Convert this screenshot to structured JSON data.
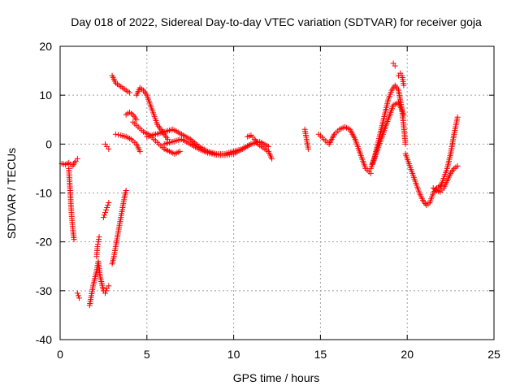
{
  "chart_data": {
    "type": "scatter",
    "title": "Day 018 of 2022, Sidereal Day-to-day VTEC variation (SDTVAR) for receiver goja",
    "xlabel": "GPS time / hours",
    "ylabel": "SDTVAR / TECUs",
    "xlim": [
      0,
      25
    ],
    "ylim": [
      -40,
      20
    ],
    "xticks": [
      0,
      5,
      10,
      15,
      20,
      25
    ],
    "yticks": [
      -40,
      -30,
      -20,
      -10,
      0,
      10,
      20
    ],
    "xtick_labels": [
      "0",
      "5",
      "10",
      "15",
      "20",
      "25"
    ],
    "ytick_labels": [
      "-40",
      "-30",
      "-20",
      "-10",
      "0",
      "10",
      "20"
    ],
    "grid": true,
    "marker": "plus",
    "color": "#ff0000",
    "series": [
      {
        "name": "seg-a",
        "x": [
          0.1,
          0.3,
          0.5,
          0.7,
          0.9,
          1.0
        ],
        "y": [
          -4,
          -4.2,
          -3.8,
          -4.5,
          -3.5,
          -3.0
        ]
      },
      {
        "name": "seg-b",
        "x": [
          0.5,
          0.55,
          0.6,
          0.65,
          0.7,
          0.75,
          0.8
        ],
        "y": [
          -5,
          -8,
          -11,
          -14,
          -16,
          -18,
          -19.5
        ]
      },
      {
        "name": "seg-c",
        "x": [
          1.0,
          1.05,
          1.1
        ],
        "y": [
          -30.5,
          -31,
          -31.5
        ]
      },
      {
        "name": "seg-d",
        "x": [
          1.7,
          1.8,
          1.9,
          2.0,
          2.1,
          2.2,
          2.3,
          2.4,
          2.5,
          2.6,
          2.7,
          2.8
        ],
        "y": [
          -33,
          -31,
          -29,
          -27.5,
          -26,
          -24,
          -27,
          -28.5,
          -30,
          -30.5,
          -29.5,
          -29
        ]
      },
      {
        "name": "seg-e",
        "x": [
          2.1,
          2.15,
          2.2,
          2.25
        ],
        "y": [
          -23,
          -21,
          -20,
          -19
        ]
      },
      {
        "name": "seg-f",
        "x": [
          2.5,
          2.6,
          2.7,
          2.8
        ],
        "y": [
          -15,
          -14,
          -13,
          -12
        ]
      },
      {
        "name": "seg-g",
        "x": [
          3.0,
          3.1,
          3.2,
          3.3,
          3.4,
          3.5,
          3.6,
          3.7,
          3.8
        ],
        "y": [
          -24.5,
          -23,
          -21,
          -19,
          -17,
          -15,
          -13,
          -11,
          -9.5
        ]
      },
      {
        "name": "seg-h",
        "x": [
          2.6,
          2.7,
          2.8
        ],
        "y": [
          0,
          -0.5,
          -1
        ]
      },
      {
        "name": "seg-i",
        "x": [
          3.0,
          3.2,
          3.4,
          3.6,
          3.8,
          4.0
        ],
        "y": [
          14,
          12.5,
          12,
          11.5,
          11,
          10.5
        ]
      },
      {
        "name": "seg-j",
        "x": [
          3.2,
          3.5,
          3.8,
          4.1,
          4.4,
          4.6
        ],
        "y": [
          2,
          1.8,
          1.5,
          1,
          0,
          -1.5
        ]
      },
      {
        "name": "seg-k",
        "x": [
          3.8,
          4.0,
          4.2,
          4.4
        ],
        "y": [
          6,
          6.5,
          6,
          5
        ]
      },
      {
        "name": "seg-l",
        "x": [
          4.4,
          4.6,
          4.8,
          5.0,
          5.2,
          5.4,
          5.6,
          5.8,
          6.0,
          6.2
        ],
        "y": [
          10,
          11.5,
          11,
          10,
          8,
          6,
          4,
          3,
          2,
          1
        ]
      },
      {
        "name": "seg-m",
        "x": [
          4.2,
          4.5,
          4.8,
          5.1,
          5.4,
          5.7,
          6.0,
          6.3,
          6.6,
          6.9
        ],
        "y": [
          4.5,
          3.5,
          2.5,
          2,
          1,
          0,
          -1,
          -1.5,
          -2,
          -1.5
        ]
      },
      {
        "name": "seg-n",
        "x": [
          5.0,
          5.5,
          6.0,
          6.5,
          7.0,
          7.5,
          8.0,
          8.5,
          9.0,
          9.5,
          10.0,
          10.5,
          11.0,
          11.5,
          12.0
        ],
        "y": [
          1.5,
          2,
          2.5,
          3,
          2,
          1,
          -0.5,
          -1.5,
          -2,
          -2,
          -1.5,
          -1,
          0,
          0.5,
          -0.5
        ]
      },
      {
        "name": "seg-o",
        "x": [
          6.0,
          6.5,
          7.0,
          7.5,
          8.0,
          8.5,
          9.0,
          9.5,
          10.0,
          10.5,
          11.0
        ],
        "y": [
          0,
          0.5,
          1,
          0,
          -1,
          -1.8,
          -2.2,
          -2.3,
          -2,
          -1,
          0
        ]
      },
      {
        "name": "seg-p",
        "x": [
          10.8,
          11.0,
          11.2,
          11.4,
          11.6,
          11.8,
          12.0,
          12.2
        ],
        "y": [
          1.5,
          1.8,
          1,
          0,
          -0.5,
          -1,
          -1.5,
          -3
        ]
      },
      {
        "name": "seg-q",
        "x": [
          14.1,
          14.2,
          14.3
        ],
        "y": [
          3,
          1,
          -1
        ]
      },
      {
        "name": "seg-r",
        "x": [
          14.9,
          15.2,
          15.5,
          15.8,
          16.1,
          16.4,
          16.7,
          17.0,
          17.3,
          17.6,
          17.9
        ],
        "y": [
          2,
          1,
          0,
          2,
          3,
          3.5,
          3,
          1,
          -2,
          -5,
          -6
        ]
      },
      {
        "name": "seg-s",
        "x": [
          17.9,
          18.1,
          18.3,
          18.5,
          18.7,
          18.9,
          19.1,
          19.3,
          19.5,
          19.7,
          19.9
        ],
        "y": [
          -5,
          -3,
          0,
          3,
          6,
          9,
          11,
          12,
          11,
          7,
          0
        ]
      },
      {
        "name": "seg-t",
        "x": [
          18.0,
          18.3,
          18.6,
          18.9,
          19.2,
          19.5,
          19.8
        ],
        "y": [
          -4,
          -1,
          2,
          5,
          8,
          8.5,
          6
        ]
      },
      {
        "name": "seg-u",
        "x": [
          19.2,
          19.3
        ],
        "y": [
          16.5,
          16
        ]
      },
      {
        "name": "seg-v",
        "x": [
          19.5,
          19.6,
          19.7,
          19.8
        ],
        "y": [
          14,
          14.5,
          14,
          12
        ]
      },
      {
        "name": "seg-w",
        "x": [
          19.9,
          20.1,
          20.3,
          20.5,
          20.7,
          20.9,
          21.1,
          21.3,
          21.5,
          21.7,
          21.9
        ],
        "y": [
          -2,
          -4,
          -6,
          -8,
          -10,
          -11.5,
          -12.5,
          -12,
          -10,
          -9,
          -8.5
        ]
      },
      {
        "name": "seg-x",
        "x": [
          21.9,
          22.1,
          22.3,
          22.5,
          22.7,
          22.9
        ],
        "y": [
          -9,
          -7,
          -5,
          -2,
          2,
          5.5
        ]
      },
      {
        "name": "seg-y",
        "x": [
          21.5,
          21.7,
          21.9,
          22.1,
          22.3,
          22.5,
          22.7,
          22.9
        ],
        "y": [
          -9,
          -9.5,
          -9.8,
          -9,
          -7.5,
          -6,
          -5,
          -4.5
        ]
      }
    ]
  }
}
